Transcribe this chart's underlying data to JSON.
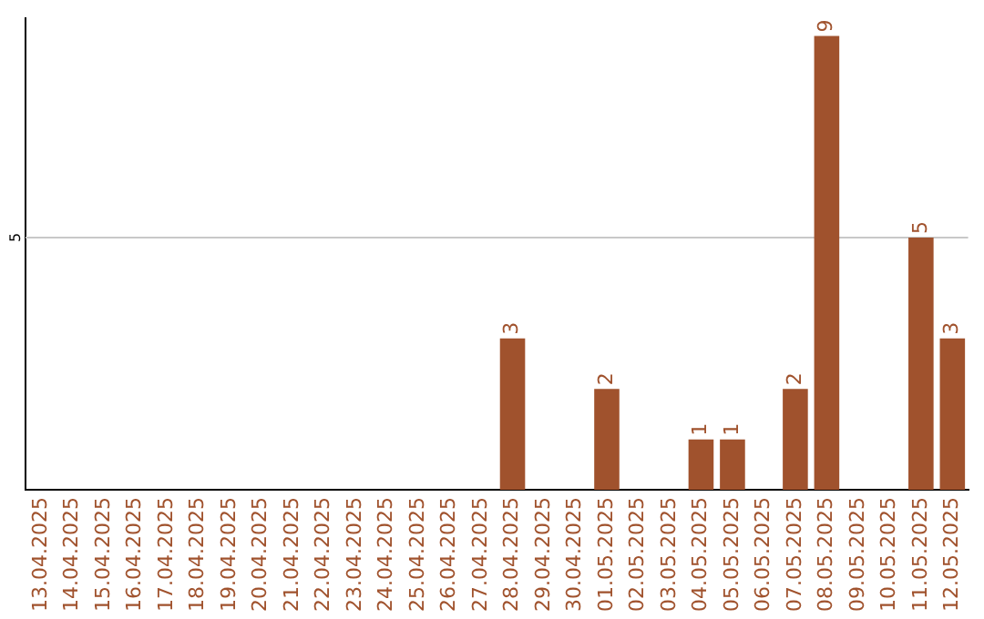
{
  "chart_data": {
    "type": "bar",
    "categories": [
      "13.04.2025",
      "14.04.2025",
      "15.04.2025",
      "16.04.2025",
      "17.04.2025",
      "18.04.2025",
      "19.04.2025",
      "20.04.2025",
      "21.04.2025",
      "22.04.2025",
      "23.04.2025",
      "24.04.2025",
      "25.04.2025",
      "26.04.2025",
      "27.04.2025",
      "28.04.2025",
      "29.04.2025",
      "30.04.2025",
      "01.05.2025",
      "02.05.2025",
      "03.05.2025",
      "04.05.2025",
      "05.05.2025",
      "06.05.2025",
      "07.05.2025",
      "08.05.2025",
      "09.05.2025",
      "10.05.2025",
      "11.05.2025",
      "12.05.2025"
    ],
    "values": [
      null,
      null,
      null,
      null,
      null,
      null,
      null,
      null,
      null,
      null,
      null,
      null,
      null,
      null,
      null,
      3,
      null,
      null,
      2,
      null,
      null,
      1,
      1,
      null,
      2,
      9,
      null,
      null,
      5,
      3
    ],
    "data_labels": true,
    "color": "#a0522d",
    "ylim": [
      0,
      9.35
    ],
    "ref_lines": [
      {
        "axis": "y",
        "value": 5,
        "label": "5",
        "color": "#c8c8c8"
      }
    ],
    "legend": false
  }
}
